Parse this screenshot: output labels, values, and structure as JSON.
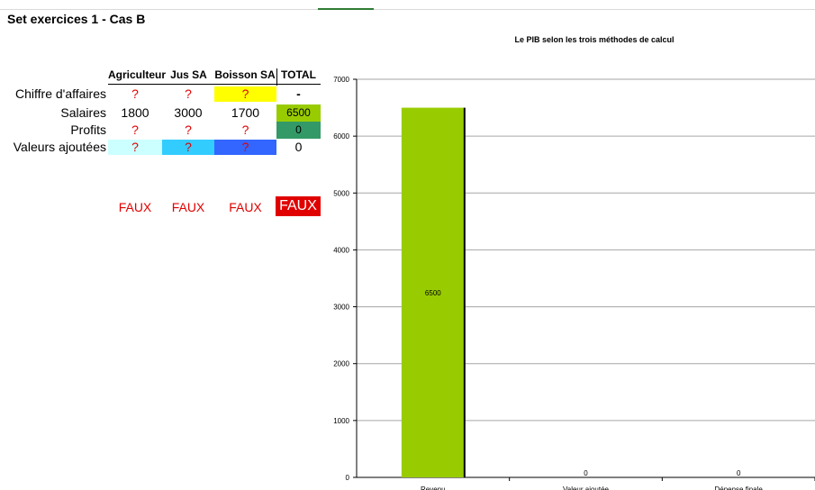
{
  "sheet_title": "Set exercices 1 - Cas B",
  "table": {
    "columns": [
      "Agriculteur",
      "Jus SA",
      "Boisson SA",
      "TOTAL"
    ],
    "rows": [
      {
        "label": "Chiffre d'affaires",
        "cells": [
          "?",
          "?",
          "?",
          "-"
        ]
      },
      {
        "label": "Salaires",
        "cells": [
          "1800",
          "3000",
          "1700",
          "6500"
        ]
      },
      {
        "label": "Profits",
        "cells": [
          "?",
          "?",
          "?",
          "0"
        ]
      },
      {
        "label": "Valeurs ajoutées",
        "cells": [
          "?",
          "?",
          "?",
          "0"
        ]
      }
    ],
    "checks": [
      "FAUX",
      "FAUX",
      "FAUX",
      "FAUX"
    ]
  },
  "colors": {
    "yellow": "#ffff00",
    "lime": "#99cc00",
    "teal_green": "#339966",
    "light_cyan": "#ccffff",
    "sky_blue": "#33ccff",
    "royal_blue": "#3366ff",
    "error_red": "#e00000",
    "bar_fill": "#99cc00"
  },
  "chart_data": {
    "type": "bar",
    "title": "Le PIB selon les trois méthodes de calcul",
    "categories": [
      "Revenu",
      "Valeur ajoutée",
      "Dépense finale"
    ],
    "values": [
      6500,
      0,
      0
    ],
    "data_labels": [
      "6500",
      "0",
      "0"
    ],
    "ylim": [
      0,
      7000
    ],
    "yticks": [
      0,
      1000,
      2000,
      3000,
      4000,
      5000,
      6000,
      7000
    ],
    "grid": true,
    "legend": "none"
  }
}
